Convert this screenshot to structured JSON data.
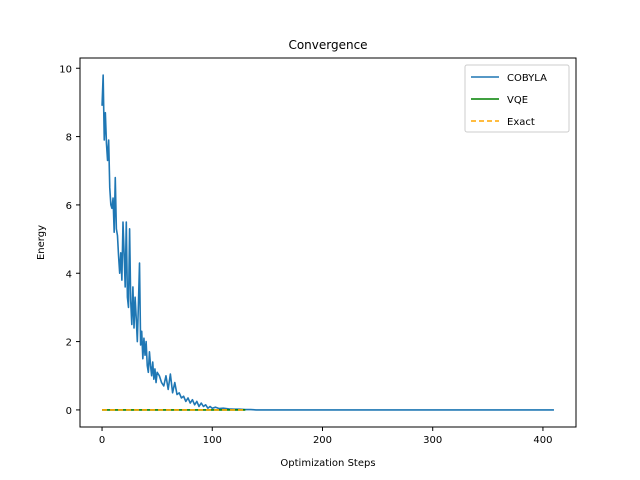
{
  "chart_data": {
    "type": "line",
    "title": "Convergence",
    "xlabel": "Optimization Steps",
    "ylabel": "Energy",
    "xlim": [
      -20,
      430
    ],
    "ylim": [
      -0.5,
      10.3
    ],
    "xticks": [
      0,
      100,
      200,
      300,
      400
    ],
    "yticks": [
      0,
      2,
      4,
      6,
      8,
      10
    ],
    "grid": false,
    "legend_position": "top-right",
    "series": [
      {
        "name": "COBYLA",
        "color": "#1f77b4",
        "style": "solid",
        "x": [
          0,
          1,
          2,
          3,
          4,
          5,
          6,
          7,
          8,
          9,
          10,
          11,
          12,
          13,
          14,
          15,
          16,
          17,
          18,
          19,
          20,
          21,
          22,
          23,
          24,
          25,
          26,
          27,
          28,
          29,
          30,
          31,
          32,
          33,
          34,
          35,
          36,
          37,
          38,
          39,
          40,
          41,
          42,
          43,
          44,
          45,
          46,
          47,
          48,
          49,
          50,
          52,
          54,
          56,
          58,
          60,
          62,
          64,
          66,
          68,
          70,
          72,
          74,
          76,
          78,
          80,
          82,
          84,
          86,
          88,
          90,
          92,
          94,
          96,
          98,
          100,
          103,
          106,
          110,
          115,
          120,
          125,
          130,
          135,
          140,
          150,
          160,
          170,
          180,
          200,
          230,
          260,
          300,
          350,
          410
        ],
        "y": [
          8.9,
          9.8,
          7.9,
          8.7,
          7.8,
          7.3,
          7.9,
          6.5,
          6.0,
          5.9,
          6.2,
          5.2,
          6.8,
          5.3,
          5.1,
          4.5,
          4.0,
          4.6,
          3.8,
          5.5,
          4.6,
          3.6,
          5.5,
          3.3,
          3.0,
          5.3,
          3.2,
          2.5,
          3.6,
          2.4,
          3.3,
          2.7,
          2.0,
          3.1,
          4.3,
          1.9,
          2.3,
          1.5,
          2.1,
          1.6,
          2.0,
          1.3,
          1.1,
          1.7,
          1.3,
          1.0,
          1.4,
          0.9,
          1.2,
          0.8,
          1.1,
          1.0,
          0.8,
          0.7,
          1.0,
          0.6,
          1.05,
          0.5,
          0.8,
          0.45,
          0.5,
          0.35,
          0.4,
          0.25,
          0.35,
          0.2,
          0.3,
          0.15,
          0.25,
          0.1,
          0.2,
          0.1,
          0.15,
          0.05,
          0.1,
          0.05,
          0.08,
          0.04,
          0.05,
          0.03,
          0.02,
          0.02,
          0.01,
          0.01,
          0.0,
          0.0,
          0.0,
          0.0,
          0.0,
          0.0,
          0.0,
          0.0,
          0.0,
          0.0,
          0.0
        ]
      },
      {
        "name": "VQE",
        "color": "#008000",
        "style": "solid",
        "x": [
          0,
          130
        ],
        "y": [
          0.0,
          0.0
        ]
      },
      {
        "name": "Exact",
        "color": "#ffa500",
        "style": "dashed",
        "x": [
          0,
          130
        ],
        "y": [
          0.0,
          0.0
        ]
      }
    ]
  }
}
